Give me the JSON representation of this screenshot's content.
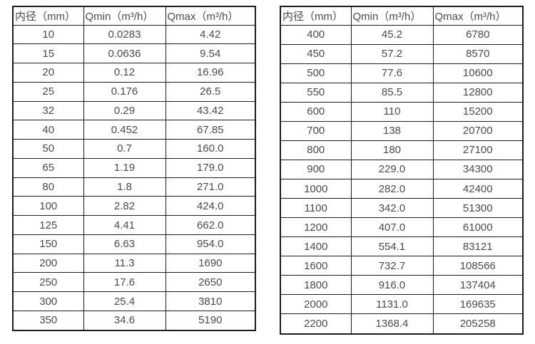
{
  "style": {
    "background": "#ffffff",
    "border_color": "#1c1c1c",
    "text_color": "#4b4b4b"
  },
  "tables": [
    {
      "name": "small-diameter-flow-table",
      "headers": [
        "内径（mm）",
        "Qmin（m³/h）",
        "Qmax（m³/h）"
      ],
      "rows": [
        [
          "10",
          "0.0283",
          "4.42"
        ],
        [
          "15",
          "0.0636",
          "9.54"
        ],
        [
          "20",
          "0.12",
          "16.96"
        ],
        [
          "25",
          "0.176",
          "26.5"
        ],
        [
          "32",
          "0.29",
          "43.42"
        ],
        [
          "40",
          "0.452",
          "67.85"
        ],
        [
          "50",
          "0.7",
          "160.0"
        ],
        [
          "65",
          "1.19",
          "179.0"
        ],
        [
          "80",
          "1.8",
          "271.0"
        ],
        [
          "100",
          "2.82",
          "424.0"
        ],
        [
          "125",
          "4.41",
          "662.0"
        ],
        [
          "150",
          "6.63",
          "954.0"
        ],
        [
          "200",
          "11.3",
          "1690"
        ],
        [
          "250",
          "17.6",
          "2650"
        ],
        [
          "300",
          "25.4",
          "3810"
        ],
        [
          "350",
          "34.6",
          "5190"
        ]
      ]
    },
    {
      "name": "large-diameter-flow-table",
      "headers": [
        "内径（mm）",
        "Qmin（m³/h）",
        "Qmax（m³/h）"
      ],
      "rows": [
        [
          "400",
          "45.2",
          "6780"
        ],
        [
          "450",
          "57.2",
          "8570"
        ],
        [
          "500",
          "77.6",
          "10600"
        ],
        [
          "550",
          "85.5",
          "12800"
        ],
        [
          "600",
          "110",
          "15200"
        ],
        [
          "700",
          "138",
          "20700"
        ],
        [
          "800",
          "180",
          "27100"
        ],
        [
          "900",
          "229.0",
          "34300"
        ],
        [
          "1000",
          "282.0",
          "42400"
        ],
        [
          "1100",
          "342.0",
          "51300"
        ],
        [
          "1200",
          "407.0",
          "61000"
        ],
        [
          "1400",
          "554.1",
          "83121"
        ],
        [
          "1600",
          "732.7",
          "108566"
        ],
        [
          "1800",
          "916.0",
          "137404"
        ],
        [
          "2000",
          "1131.0",
          "169635"
        ],
        [
          "2200",
          "1368.4",
          "205258"
        ]
      ]
    }
  ]
}
